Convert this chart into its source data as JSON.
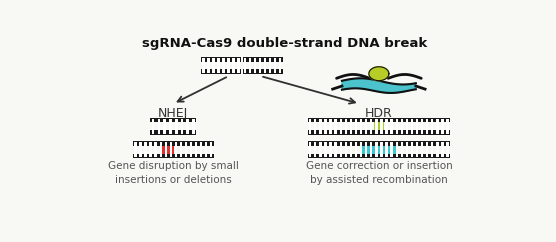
{
  "title": "sgRNA-Cas9 double-strand DNA break",
  "title_fontsize": 9.5,
  "bg_color": "#f8f8f5",
  "dna_color": "#1a1a1a",
  "dna_stripe_color": "#ffffff",
  "red_insert": "#e03030",
  "cyan_insert": "#38c8d0",
  "green_insert": "#aacf30",
  "arrow_color": "#303030",
  "label_nhej": "NHEJ",
  "label_hdr": "HDR",
  "text_nhej": "Gene disruption by small\ninsertions or deletions",
  "text_hdr": "Gene correction or insertion\nby assisted recombination",
  "text_fontsize": 7.5,
  "label_fontsize": 9.0,
  "teal_color": "#38bcc8",
  "yellow_green": "#b8cc28"
}
